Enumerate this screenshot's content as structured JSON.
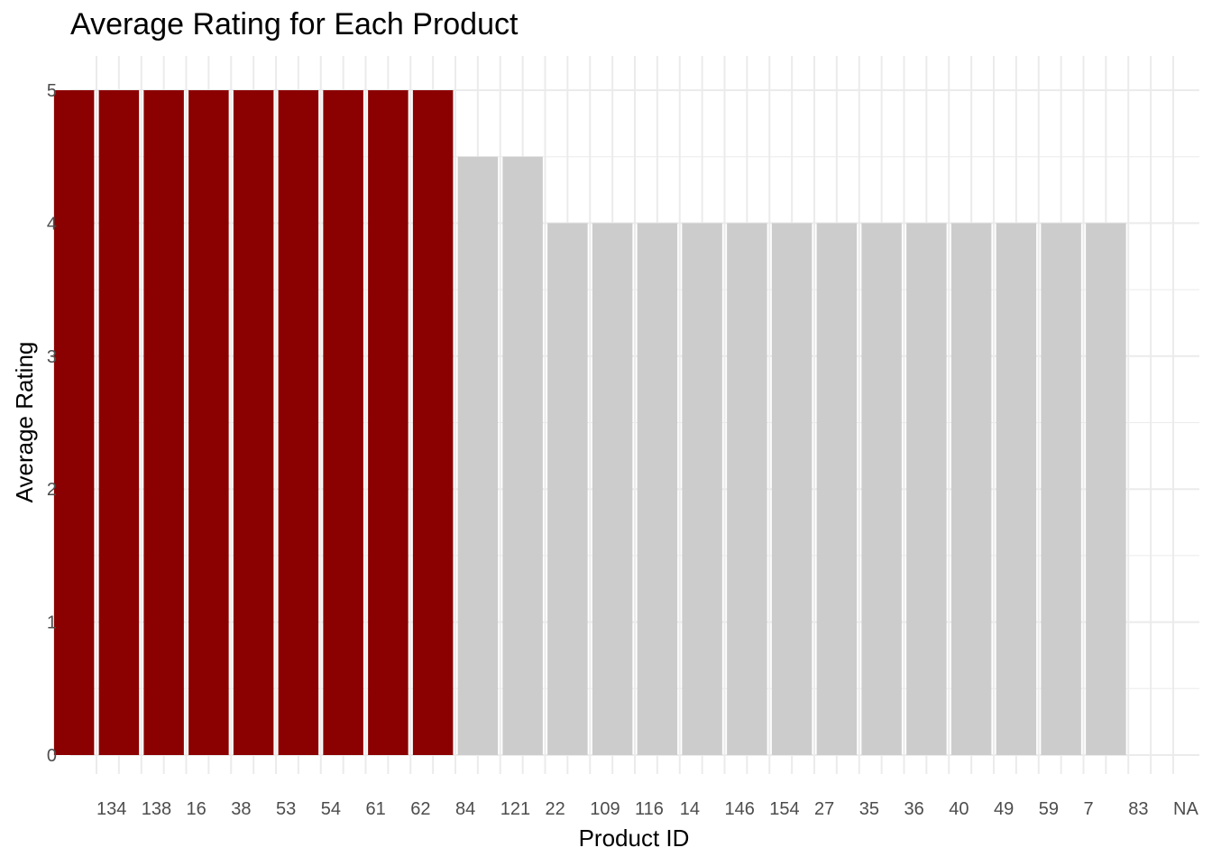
{
  "chart_data": {
    "type": "bar",
    "title": "Average Rating for Each Product",
    "xlabel": "Product ID",
    "ylabel": "Average Rating",
    "ylim": [
      0,
      5.25
    ],
    "yticks": [
      "0",
      "1",
      "2",
      "3",
      "4",
      "5"
    ],
    "grid": true,
    "legend": "none",
    "highlight_color": "#8B0000",
    "base_color": "#CCCCCC",
    "bars": [
      {
        "value": 5,
        "highlight": true
      },
      {
        "value": 5,
        "highlight": true
      },
      {
        "value": 5,
        "highlight": true
      },
      {
        "value": 5,
        "highlight": true
      },
      {
        "value": 5,
        "highlight": true
      },
      {
        "value": 5,
        "highlight": true
      },
      {
        "value": 5,
        "highlight": true
      },
      {
        "value": 5,
        "highlight": true
      },
      {
        "value": 5,
        "highlight": true
      },
      {
        "value": 4.5,
        "highlight": false
      },
      {
        "value": 4.5,
        "highlight": false
      },
      {
        "value": 4,
        "highlight": false
      },
      {
        "value": 4,
        "highlight": false
      },
      {
        "value": 4,
        "highlight": false
      },
      {
        "value": 4,
        "highlight": false
      },
      {
        "value": 4,
        "highlight": false
      },
      {
        "value": 4,
        "highlight": false
      },
      {
        "value": 4,
        "highlight": false
      },
      {
        "value": 4,
        "highlight": false
      },
      {
        "value": 4,
        "highlight": false
      },
      {
        "value": 4,
        "highlight": false
      },
      {
        "value": 4,
        "highlight": false
      },
      {
        "value": 4,
        "highlight": false
      },
      {
        "value": 4,
        "highlight": false
      }
    ],
    "x_tick_labels": [
      "134",
      "138",
      "16",
      "38",
      "53",
      "54",
      "61",
      "62",
      "84",
      "121",
      "22",
      "109",
      "116",
      "14",
      "146",
      "154",
      "27",
      "35",
      "36",
      "40",
      "49",
      "59",
      "7",
      "83",
      "NA"
    ]
  }
}
